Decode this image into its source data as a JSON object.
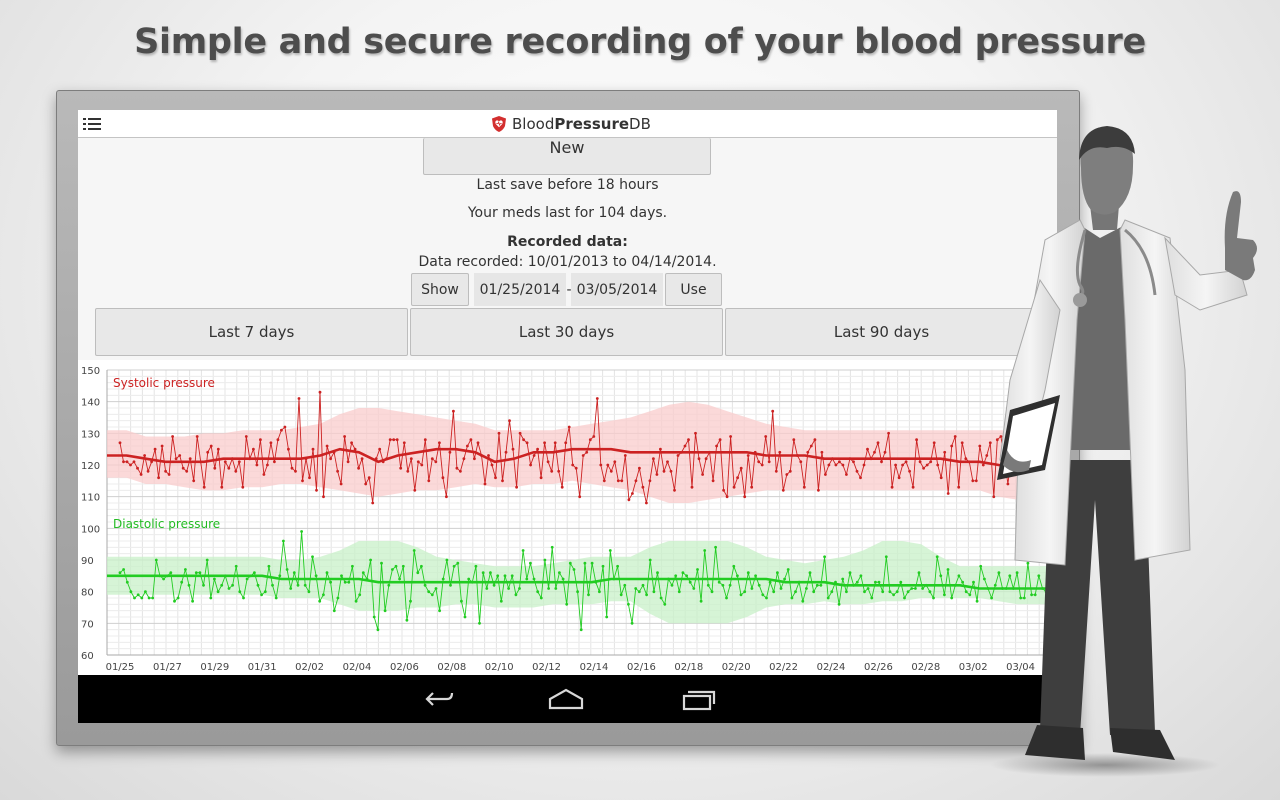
{
  "headline": "Simple and secure recording of your blood pressure",
  "app": {
    "title_part1": "Blood",
    "title_part2": "Pressure",
    "title_part3": "DB"
  },
  "actions": {
    "new_label": "New",
    "last_save": "Last save before 18 hours",
    "meds": "Your meds last for 104 days.",
    "recorded_heading": "Recorded data:",
    "recorded_range": "Data recorded: 10/01/2013 to 04/14/2014.",
    "show_label": "Show",
    "from_date": "01/25/2014",
    "dash": "-",
    "to_date": "03/05/2014",
    "use_label": "Use"
  },
  "ranges": [
    {
      "label": "Last 7 days"
    },
    {
      "label": "Last 30 days"
    },
    {
      "label": "Last 90 days"
    }
  ],
  "colors": {
    "systolic": "#cc2222",
    "systolic_band": "#f9cccc",
    "diastolic": "#22cc22",
    "diastolic_band": "#c8f0c8",
    "accent_logo": "#d32f2f"
  },
  "icons": {
    "menu": "menu-icon",
    "logo": "heart-shield-icon",
    "back": "back-icon",
    "home": "home-icon",
    "recents": "recents-icon"
  },
  "chart_data": {
    "type": "line",
    "ylim": [
      60,
      150
    ],
    "yticks": [
      "150",
      "140",
      "130",
      "120",
      "110",
      "100",
      "90",
      "80",
      "70",
      "60"
    ],
    "xticks": [
      "01/25",
      "01/27",
      "01/29",
      "01/31",
      "02/02",
      "02/04",
      "02/06",
      "02/08",
      "02/10",
      "02/12",
      "02/14",
      "02/16",
      "02/18",
      "02/20",
      "02/22",
      "02/24",
      "02/26",
      "02/28",
      "03/02",
      "03/04"
    ],
    "series": [
      {
        "name": "Systolic pressure",
        "values": [
          127,
          121,
          121,
          120,
          121,
          119,
          117,
          123,
          118,
          121,
          125,
          116,
          126,
          118,
          117,
          129,
          122,
          123,
          119,
          118,
          122,
          115,
          129,
          121,
          113,
          124,
          126,
          119,
          125,
          113,
          121,
          119,
          122,
          118,
          121,
          113,
          129,
          122,
          125,
          120,
          128,
          117,
          120,
          127,
          121,
          128,
          131,
          132,
          125,
          119,
          118,
          141,
          115,
          122,
          116,
          125,
          112,
          143,
          110,
          126,
          122,
          124,
          118,
          114,
          129,
          121,
          127,
          125,
          119,
          122,
          114,
          116,
          108,
          122,
          125,
          121,
          122,
          128,
          128,
          128,
          119,
          127,
          118,
          122,
          112,
          121,
          120,
          128,
          115,
          122,
          121,
          127,
          116,
          110,
          124,
          137,
          119,
          118,
          122,
          126,
          128,
          122,
          127,
          123,
          114,
          123,
          120,
          116,
          130,
          115,
          124,
          134,
          125,
          113,
          130,
          128,
          127,
          120,
          123,
          125,
          116,
          127,
          121,
          118,
          127,
          118,
          113,
          127,
          132,
          120,
          119,
          110,
          123,
          124,
          128,
          129,
          141,
          120,
          115,
          120,
          118,
          121,
          115,
          115,
          123,
          109,
          111,
          115,
          119,
          113,
          108,
          115,
          122,
          117,
          125,
          118,
          121,
          118,
          112,
          123,
          124,
          126,
          128,
          113,
          130,
          122,
          117,
          122,
          124,
          115,
          126,
          128,
          112,
          110,
          129,
          113,
          116,
          119,
          110,
          123,
          113,
          124,
          121,
          120,
          129,
          121,
          137,
          118,
          124,
          112,
          117,
          118,
          128,
          123,
          121,
          113,
          124,
          126,
          128,
          112,
          124,
          117,
          120,
          122,
          120,
          121,
          120,
          117,
          122,
          121,
          118,
          116,
          120,
          125,
          122,
          124,
          127,
          121,
          124,
          130,
          113,
          120,
          116,
          120,
          121,
          118,
          113,
          128,
          121,
          119,
          120,
          121,
          127,
          120,
          116,
          124,
          111,
          126,
          129,
          113,
          127,
          122,
          121,
          115,
          115,
          126,
          120,
          123,
          127,
          110,
          128,
          129,
          122,
          114,
          123,
          117,
          123,
          119,
          128,
          120,
          121,
          124,
          124,
          126,
          124,
          111,
          120,
          120
        ],
        "avg": [
          123,
          123,
          122,
          121,
          121,
          121,
          122,
          122,
          122,
          122,
          122,
          123,
          125,
          124,
          121,
          123,
          124,
          125,
          125,
          124,
          121,
          122,
          124,
          124,
          125,
          125,
          125,
          124,
          124,
          124,
          124,
          124,
          124,
          124,
          123,
          123,
          123,
          122,
          122,
          122,
          122,
          122,
          122,
          122,
          121,
          121,
          120,
          119,
          119,
          119
        ],
        "band_low": [
          116,
          116,
          114,
          114,
          113,
          112,
          112,
          113,
          113,
          114,
          114,
          113,
          112,
          111,
          110,
          111,
          112,
          112,
          113,
          114,
          113,
          113,
          114,
          114,
          115,
          114,
          113,
          112,
          110,
          108,
          108,
          109,
          110,
          111,
          112,
          112,
          112,
          112,
          112,
          112,
          112,
          112,
          112,
          112,
          112,
          112,
          110,
          109,
          109,
          109
        ],
        "band_high": [
          131,
          131,
          129,
          129,
          129,
          130,
          130,
          131,
          131,
          131,
          132,
          133,
          136,
          138,
          138,
          137,
          136,
          135,
          134,
          133,
          131,
          131,
          131,
          131,
          132,
          133,
          134,
          135,
          137,
          139,
          140,
          139,
          137,
          135,
          133,
          132,
          131,
          131,
          131,
          131,
          131,
          131,
          131,
          131,
          131,
          131,
          131,
          131,
          131,
          131
        ]
      },
      {
        "name": "Diastolic pressure",
        "values": [
          86,
          87,
          83,
          80,
          78,
          79,
          78,
          80,
          78,
          78,
          90,
          85,
          84,
          85,
          86,
          77,
          78,
          83,
          87,
          82,
          77,
          86,
          86,
          82,
          90,
          78,
          84,
          80,
          82,
          85,
          81,
          82,
          88,
          80,
          78,
          84,
          85,
          86,
          82,
          79,
          80,
          88,
          82,
          78,
          85,
          96,
          87,
          81,
          86,
          82,
          99,
          82,
          80,
          91,
          85,
          77,
          79,
          86,
          83,
          74,
          78,
          85,
          83,
          83,
          88,
          77,
          79,
          86,
          84,
          90,
          72,
          68,
          89,
          74,
          82,
          87,
          88,
          84,
          88,
          71,
          77,
          93,
          86,
          88,
          82,
          80,
          79,
          81,
          74,
          84,
          90,
          82,
          88,
          89,
          77,
          72,
          84,
          83,
          88,
          70,
          86,
          81,
          86,
          82,
          85,
          77,
          85,
          81,
          85,
          79,
          81,
          93,
          84,
          89,
          84,
          80,
          78,
          90,
          81,
          94,
          81,
          86,
          84,
          76,
          89,
          87,
          80,
          68,
          89,
          79,
          89,
          83,
          80,
          88,
          72,
          93,
          84,
          88,
          79,
          82,
          76,
          70,
          81,
          80,
          82,
          79,
          90,
          80,
          86,
          78,
          76,
          84,
          82,
          85,
          80,
          86,
          85,
          83,
          81,
          87,
          77,
          93,
          82,
          80,
          94,
          83,
          82,
          78,
          82,
          88,
          85,
          79,
          80,
          86,
          81,
          85,
          82,
          79,
          78,
          83,
          80,
          86,
          81,
          84,
          87,
          78,
          80,
          83,
          77,
          81,
          86,
          80,
          82,
          82,
          91,
          78,
          80,
          83,
          76,
          84,
          80,
          86,
          82,
          83,
          85,
          80,
          81,
          78,
          83,
          83,
          80,
          91,
          80,
          79,
          80,
          83,
          78,
          80,
          81,
          81,
          86,
          81,
          82,
          80,
          78,
          91,
          85,
          79,
          87,
          78,
          82,
          85,
          83,
          80,
          79,
          83,
          77,
          88,
          84,
          81,
          78,
          82,
          86,
          81,
          81,
          85,
          81,
          86,
          78,
          78,
          89,
          79,
          79,
          85,
          81,
          80,
          86,
          83,
          79
        ],
        "avg": [
          85,
          85,
          85,
          85,
          85,
          85,
          85,
          85,
          85,
          84,
          84,
          84,
          84,
          84,
          83,
          83,
          83,
          83,
          83,
          83,
          83,
          83,
          83,
          83,
          83,
          83,
          84,
          84,
          84,
          84,
          84,
          84,
          84,
          84,
          84,
          83,
          83,
          83,
          82,
          82,
          82,
          82,
          82,
          82,
          82,
          81,
          81,
          81,
          81,
          81
        ],
        "band_low": [
          79,
          79,
          79,
          79,
          79,
          79,
          79,
          79,
          79,
          78,
          78,
          78,
          76,
          74,
          74,
          74,
          75,
          75,
          76,
          76,
          75,
          75,
          75,
          76,
          76,
          76,
          77,
          77,
          73,
          70,
          70,
          70,
          70,
          72,
          75,
          76,
          76,
          77,
          76,
          76,
          77,
          77,
          78,
          78,
          78,
          78,
          77,
          76,
          76,
          76
        ],
        "band_high": [
          91,
          91,
          91,
          91,
          91,
          91,
          91,
          91,
          91,
          90,
          90,
          91,
          93,
          96,
          96,
          96,
          94,
          91,
          90,
          89,
          88,
          88,
          88,
          89,
          90,
          91,
          91,
          91,
          94,
          96,
          96,
          96,
          96,
          94,
          91,
          90,
          89,
          90,
          91,
          93,
          96,
          96,
          95,
          91,
          88,
          88,
          88,
          88,
          88,
          88
        ]
      }
    ]
  }
}
